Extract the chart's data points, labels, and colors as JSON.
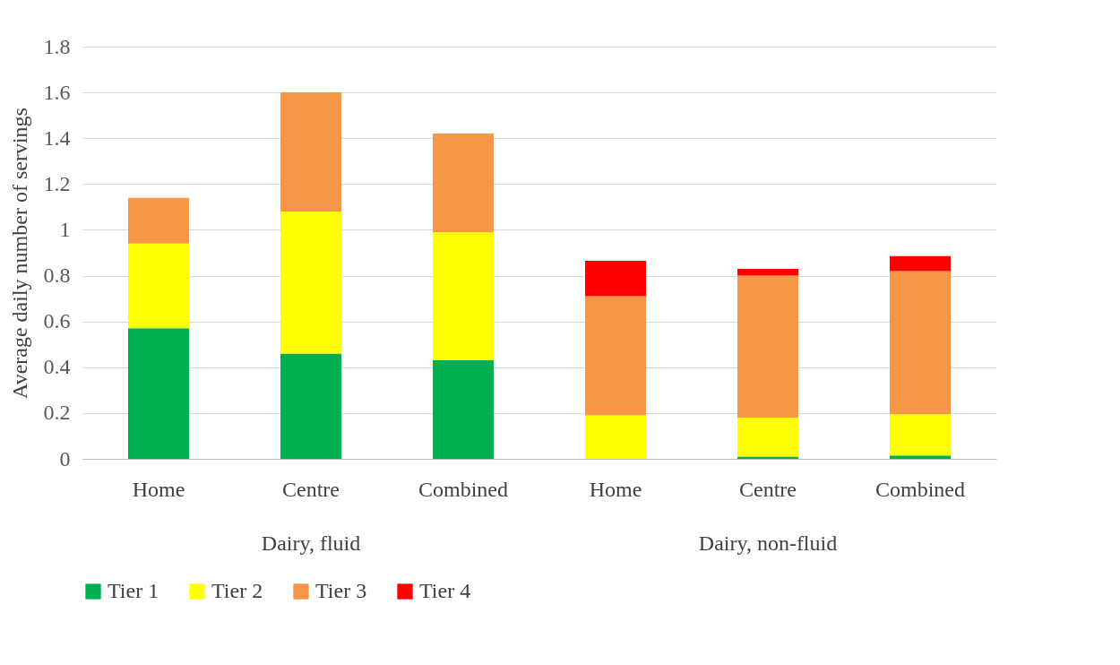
{
  "chart_data": {
    "type": "bar",
    "stacked": true,
    "ylabel": "Average daily number of servings",
    "categories": [
      "Home",
      "Centre",
      "Combined",
      "Home",
      "Centre",
      "Combined"
    ],
    "annotations": [
      "Dairy, fluid",
      "Dairy, non-fluid"
    ],
    "series": [
      {
        "name": "Tier 1",
        "color": "#00b050",
        "values": [
          0.57,
          0.46,
          0.43,
          0,
          0.01,
          0.015
        ]
      },
      {
        "name": "Tier 2",
        "color": "#ffff00",
        "values": [
          0.37,
          0.62,
          0.56,
          0.19,
          0.17,
          0.18
        ]
      },
      {
        "name": "Tier 3",
        "color": "#f79646",
        "values": [
          0.2,
          0.52,
          0.43,
          0.52,
          0.62,
          0.625
        ]
      },
      {
        "name": "Tier 4",
        "color": "#ff0000",
        "values": [
          0,
          0,
          0,
          0.155,
          0.03,
          0.065
        ]
      }
    ],
    "ylim": [
      0,
      1.8
    ],
    "yticks": [
      0,
      0.2,
      0.4,
      0.6,
      0.8,
      1,
      1.2,
      1.4,
      1.6,
      1.8
    ],
    "grid": "y",
    "legend": "bottom"
  }
}
